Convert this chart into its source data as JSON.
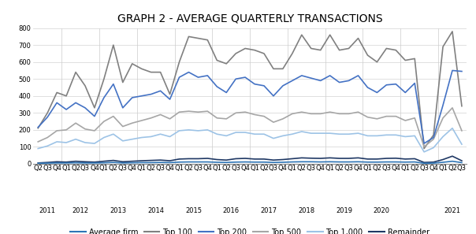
{
  "title": "GRAPH 2 - AVERAGE QUARTERLY TRANSACTIONS",
  "ylim": [
    0,
    800
  ],
  "yticks": [
    0,
    100,
    200,
    300,
    400,
    500,
    600,
    700,
    800
  ],
  "series": {
    "Top 100": {
      "color": "#808080",
      "linewidth": 1.2,
      "values": [
        210,
        300,
        420,
        400,
        540,
        460,
        330,
        500,
        700,
        480,
        590,
        560,
        540,
        540,
        410,
        600,
        750,
        740,
        730,
        610,
        590,
        650,
        680,
        670,
        650,
        560,
        560,
        650,
        760,
        680,
        670,
        760,
        670,
        680,
        740,
        640,
        600,
        680,
        670,
        610,
        620,
        90,
        170,
        690,
        780,
        340
      ]
    },
    "Top 200": {
      "color": "#4472C4",
      "linewidth": 1.2,
      "values": [
        215,
        275,
        360,
        320,
        360,
        330,
        280,
        390,
        470,
        330,
        390,
        400,
        410,
        430,
        380,
        510,
        540,
        510,
        520,
        455,
        420,
        500,
        510,
        470,
        460,
        400,
        460,
        490,
        520,
        505,
        490,
        520,
        480,
        490,
        520,
        450,
        420,
        465,
        470,
        420,
        475,
        120,
        155,
        345,
        550,
        545
      ]
    },
    "Top 500": {
      "color": "#A6A6A6",
      "linewidth": 1.2,
      "values": [
        130,
        155,
        195,
        200,
        240,
        205,
        195,
        250,
        280,
        220,
        240,
        255,
        270,
        290,
        265,
        305,
        310,
        305,
        310,
        270,
        265,
        300,
        305,
        290,
        280,
        245,
        265,
        295,
        305,
        295,
        295,
        305,
        295,
        295,
        305,
        275,
        265,
        280,
        280,
        255,
        270,
        100,
        145,
        270,
        330,
        195
      ]
    },
    "Top 1,000": {
      "color": "#9DC3E6",
      "linewidth": 1.2,
      "values": [
        90,
        105,
        130,
        125,
        145,
        125,
        120,
        155,
        175,
        135,
        145,
        155,
        160,
        175,
        160,
        195,
        200,
        195,
        200,
        175,
        165,
        185,
        185,
        175,
        175,
        150,
        165,
        175,
        190,
        180,
        180,
        180,
        175,
        175,
        180,
        165,
        165,
        170,
        170,
        160,
        165,
        70,
        95,
        160,
        210,
        115
      ]
    },
    "Remainder": {
      "color": "#1F3864",
      "linewidth": 1.2,
      "values": [
        5,
        8,
        12,
        10,
        15,
        12,
        10,
        15,
        20,
        12,
        15,
        18,
        20,
        22,
        18,
        28,
        30,
        30,
        32,
        25,
        22,
        30,
        32,
        28,
        28,
        22,
        25,
        30,
        35,
        33,
        32,
        35,
        32,
        32,
        35,
        28,
        28,
        32,
        33,
        28,
        30,
        8,
        10,
        25,
        45,
        18
      ]
    },
    "Average firm": {
      "color": "#2E75B6",
      "linewidth": 1.2,
      "values": [
        3,
        4,
        5,
        5,
        6,
        5,
        5,
        6,
        8,
        5,
        6,
        7,
        7,
        8,
        7,
        10,
        11,
        11,
        11,
        9,
        8,
        10,
        11,
        10,
        10,
        8,
        9,
        11,
        12,
        12,
        11,
        12,
        11,
        11,
        12,
        10,
        10,
        11,
        11,
        10,
        11,
        3,
        4,
        9,
        15,
        7
      ]
    }
  },
  "x_labels_quarters": [
    "Q2",
    "Q3",
    "Q4",
    "Q1",
    "Q2",
    "Q3",
    "Q4",
    "Q1",
    "Q2",
    "Q3",
    "Q4",
    "Q1",
    "Q2",
    "Q3",
    "Q4",
    "Q1",
    "Q2",
    "Q3",
    "Q4",
    "Q1",
    "Q2",
    "Q3",
    "Q4",
    "Q1",
    "Q2",
    "Q3",
    "Q4",
    "Q1",
    "Q2",
    "Q3",
    "Q4",
    "Q1",
    "Q2",
    "Q3",
    "Q4",
    "Q1",
    "Q2",
    "Q3",
    "Q4",
    "Q1",
    "Q2",
    "Q3",
    "Q4",
    "Q1",
    "Q2",
    "Q3"
  ],
  "year_groups": [
    {
      "label": "2011",
      "start": 0,
      "end": 2
    },
    {
      "label": "2012",
      "start": 3,
      "end": 6
    },
    {
      "label": "2013",
      "start": 7,
      "end": 10
    },
    {
      "label": "2014",
      "start": 11,
      "end": 14
    },
    {
      "label": "2015",
      "start": 15,
      "end": 18
    },
    {
      "label": "2016",
      "start": 19,
      "end": 22
    },
    {
      "label": "2017",
      "start": 23,
      "end": 26
    },
    {
      "label": "2018",
      "start": 27,
      "end": 30
    },
    {
      "label": "2019",
      "start": 31,
      "end": 34
    },
    {
      "label": "2020",
      "start": 35,
      "end": 38
    },
    {
      "label": "2021",
      "start": 43,
      "end": 45
    }
  ],
  "year_dividers": [
    3,
    7,
    11,
    15,
    19,
    23,
    27,
    31,
    35,
    39,
    43
  ],
  "legend_order": [
    "Average firm",
    "Top 100",
    "Top 200",
    "Top 500",
    "Top 1,000",
    "Remainder"
  ],
  "background_color": "#FFFFFF",
  "grid_color": "#D3D3D3",
  "title_fontsize": 10,
  "tick_fontsize": 6,
  "legend_fontsize": 7
}
